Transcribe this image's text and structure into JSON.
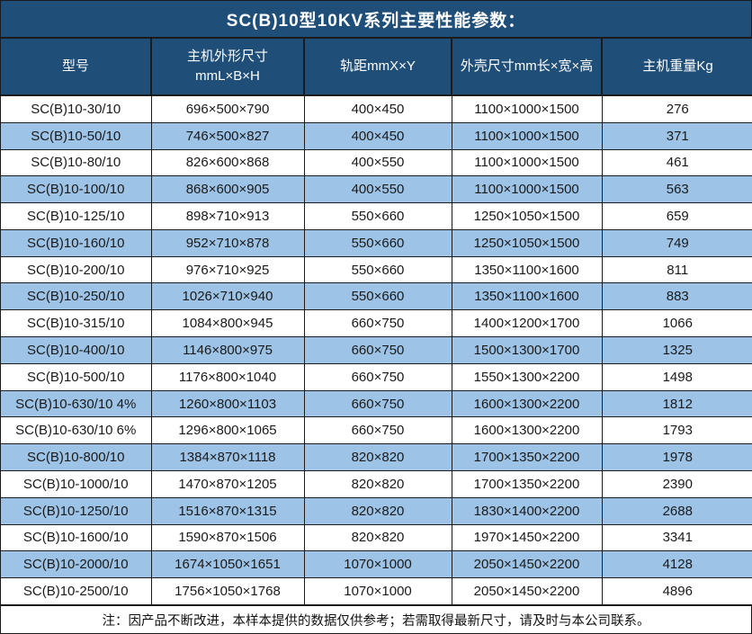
{
  "title": "SC(B)10型10KV系列主要性能参数：",
  "table": {
    "columns": [
      {
        "label": "型号"
      },
      {
        "label": "主机外形尺寸",
        "label2": "mmL×B×H"
      },
      {
        "label": "轨距mmX×Y"
      },
      {
        "label": "外壳尺寸mm长×宽×高"
      },
      {
        "label": "主机重量Kg"
      }
    ],
    "rows": [
      [
        "SC(B)10-30/10",
        "696×500×790",
        "400×450",
        "1100×1000×1500",
        "276"
      ],
      [
        "SC(B)10-50/10",
        "746×500×827",
        "400×450",
        "1100×1000×1500",
        "371"
      ],
      [
        "SC(B)10-80/10",
        "826×600×868",
        "400×550",
        "1100×1000×1500",
        "461"
      ],
      [
        "SC(B)10-100/10",
        "868×600×905",
        "400×550",
        "1100×1000×1500",
        "563"
      ],
      [
        "SC(B)10-125/10",
        "898×710×913",
        "550×660",
        "1250×1050×1500",
        "659"
      ],
      [
        "SC(B)10-160/10",
        "952×710×878",
        "550×660",
        "1250×1050×1500",
        "749"
      ],
      [
        "SC(B)10-200/10",
        "976×710×925",
        "550×660",
        "1350×1100×1600",
        "811"
      ],
      [
        "SC(B)10-250/10",
        "1026×710×940",
        "550×660",
        "1350×1100×1600",
        "883"
      ],
      [
        "SC(B)10-315/10",
        "1084×800×945",
        "660×750",
        "1400×1200×1700",
        "1066"
      ],
      [
        "SC(B)10-400/10",
        "1146×800×975",
        "660×750",
        "1500×1300×1700",
        "1325"
      ],
      [
        "SC(B)10-500/10",
        "1176×800×1040",
        "660×750",
        "1550×1300×2200",
        "1498"
      ],
      [
        "SC(B)10-630/10 4%",
        "1260×800×1103",
        "660×750",
        "1600×1300×2200",
        "1812"
      ],
      [
        "SC(B)10-630/10 6%",
        "1296×800×1065",
        "660×750",
        "1600×1300×2200",
        "1793"
      ],
      [
        "SC(B)10-800/10",
        "1384×870×1118",
        "820×820",
        "1700×1350×2200",
        "1978"
      ],
      [
        "SC(B)10-1000/10",
        "1470×870×1205",
        "820×820",
        "1700×1350×2200",
        "2390"
      ],
      [
        "SC(B)10-1250/10",
        "1516×870×1315",
        "820×820",
        "1830×1400×2200",
        "2688"
      ],
      [
        "SC(B)10-1600/10",
        "1590×870×1506",
        "820×820",
        "1970×1450×2200",
        "3341"
      ],
      [
        "SC(B)10-2000/10",
        "1674×1050×1651",
        "1070×1000",
        "2050×1450×2200",
        "4128"
      ],
      [
        "SC(B)10-2500/10",
        "1756×1050×1768",
        "1070×1000",
        "2050×1450×2200",
        "4896"
      ]
    ]
  },
  "note": "注：因产品不断改进，本样本提供的数据仅供参考；若需取得最新尺寸，请及时与本公司联系。",
  "colors": {
    "header_bg": "#1F4E79",
    "row_alt_bg": "#9DC3E6",
    "row_bg": "#FFFFFF",
    "grid": "#1b1b1b",
    "header_text": "#FFFFFF",
    "cell_text": "#1a1a1a"
  }
}
